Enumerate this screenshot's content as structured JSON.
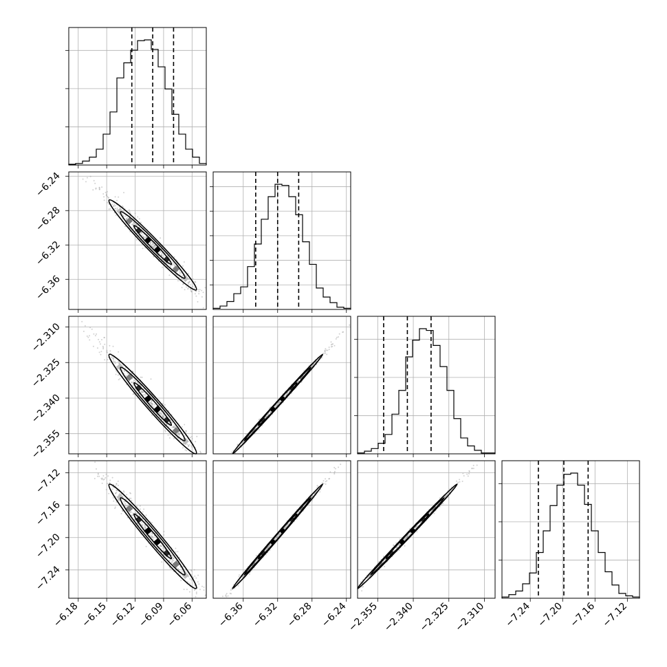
{
  "chart_data": {
    "type": "corner",
    "grid": true,
    "parameters": [
      {
        "range": [
          -6.19,
          -6.045
        ],
        "ticks": [
          -6.18,
          -6.15,
          -6.12,
          -6.09,
          -6.06
        ],
        "tick_labels": [
          "−6.18",
          "−6.15",
          "−6.12",
          "−6.09",
          "−6.06"
        ],
        "hist_ticks": 3
      },
      {
        "range": [
          -6.395,
          -6.235
        ],
        "ticks": [
          -6.36,
          -6.32,
          -6.28,
          -6.24
        ],
        "tick_labels": [
          "−6.36",
          "−6.32",
          "−6.28",
          "−6.24"
        ],
        "hist_ticks": 5
      },
      {
        "range": [
          -2.3635,
          -2.3055
        ],
        "ticks": [
          -2.355,
          -2.34,
          -2.325,
          -2.31
        ],
        "tick_labels": [
          "−2.355",
          "−2.340",
          "−2.325",
          "−2.310"
        ],
        "hist_ticks": 3
      },
      {
        "range": [
          -7.275,
          -7.105
        ],
        "ticks": [
          -7.24,
          -7.2,
          -7.16,
          -7.12
        ],
        "tick_labels": [
          "−7.24",
          "−7.20",
          "−7.16",
          "−7.12"
        ],
        "hist_ticks": 3
      }
    ],
    "marginals": [
      {
        "quantiles": [
          -6.1235,
          -6.1015,
          -6.0795
        ],
        "counts": [
          1,
          2,
          5,
          10,
          20,
          39,
          67,
          110,
          129,
          145,
          157,
          158,
          146,
          124,
          96,
          64,
          39,
          20,
          10,
          2
        ]
      },
      {
        "quantiles": [
          -6.3455,
          -6.32,
          -6.2955
        ],
        "counts": [
          1,
          3,
          7,
          14,
          20,
          38,
          58,
          80,
          100,
          111,
          110,
          100,
          84,
          60,
          40,
          19,
          11,
          6,
          2,
          1
        ]
      },
      {
        "quantiles": [
          -2.3525,
          -2.3425,
          -2.3325
        ],
        "counts": [
          1,
          3,
          6,
          12,
          22,
          45,
          72,
          110,
          129,
          142,
          140,
          123,
          99,
          72,
          40,
          18,
          9,
          4,
          1,
          1
        ]
      },
      {
        "quantiles": [
          -7.23,
          -7.1985,
          -7.1685
        ],
        "counts": [
          1,
          3,
          6,
          12,
          21,
          38,
          56,
          77,
          94,
          103,
          104,
          94,
          78,
          56,
          38,
          22,
          11,
          4,
          2,
          1
        ]
      }
    ],
    "covariance_correlations": [
      [
        1,
        -0.98,
        -0.98,
        -0.98
      ],
      [
        -0.98,
        1,
        0.998,
        0.998
      ],
      [
        -0.98,
        0.998,
        1,
        0.998
      ],
      [
        -0.98,
        0.998,
        0.998,
        1
      ]
    ]
  }
}
